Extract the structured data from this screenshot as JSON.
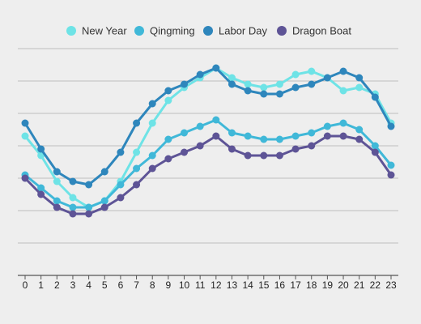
{
  "chart_data": {
    "type": "line",
    "title": "",
    "xlabel": "",
    "ylabel": "",
    "legend_position": "top-center",
    "grid": true,
    "x": [
      0,
      1,
      2,
      3,
      4,
      5,
      6,
      7,
      8,
      9,
      10,
      11,
      12,
      13,
      14,
      15,
      16,
      17,
      18,
      19,
      20,
      21,
      22,
      23
    ],
    "ylim": [
      0,
      7
    ],
    "series": [
      {
        "name": "New Year",
        "color": "#6ee3e6",
        "values": [
          4.3,
          3.7,
          2.9,
          2.4,
          2.1,
          2.3,
          2.9,
          3.8,
          4.7,
          5.4,
          5.8,
          6.1,
          6.4,
          6.1,
          5.9,
          5.8,
          5.9,
          6.2,
          6.3,
          6.1,
          5.7,
          5.8,
          5.6,
          4.7
        ]
      },
      {
        "name": "Qingming",
        "color": "#40b8d8",
        "values": [
          3.1,
          2.7,
          2.3,
          2.1,
          2.1,
          2.3,
          2.8,
          3.3,
          3.7,
          4.2,
          4.4,
          4.6,
          4.8,
          4.4,
          4.3,
          4.2,
          4.2,
          4.3,
          4.4,
          4.6,
          4.7,
          4.5,
          4.0,
          3.4
        ]
      },
      {
        "name": "Labor Day",
        "color": "#2e86bc",
        "values": [
          4.7,
          3.9,
          3.2,
          2.9,
          2.8,
          3.2,
          3.8,
          4.7,
          5.3,
          5.7,
          5.9,
          6.2,
          6.4,
          5.9,
          5.7,
          5.6,
          5.6,
          5.8,
          5.9,
          6.1,
          6.3,
          6.1,
          5.5,
          4.6
        ]
      },
      {
        "name": "Dragon Boat",
        "color": "#5e5496",
        "values": [
          3.0,
          2.5,
          2.1,
          1.9,
          1.9,
          2.1,
          2.4,
          2.8,
          3.3,
          3.6,
          3.8,
          4.0,
          4.3,
          3.9,
          3.7,
          3.7,
          3.7,
          3.9,
          4.0,
          4.3,
          4.3,
          4.2,
          3.8,
          3.1
        ]
      }
    ]
  }
}
